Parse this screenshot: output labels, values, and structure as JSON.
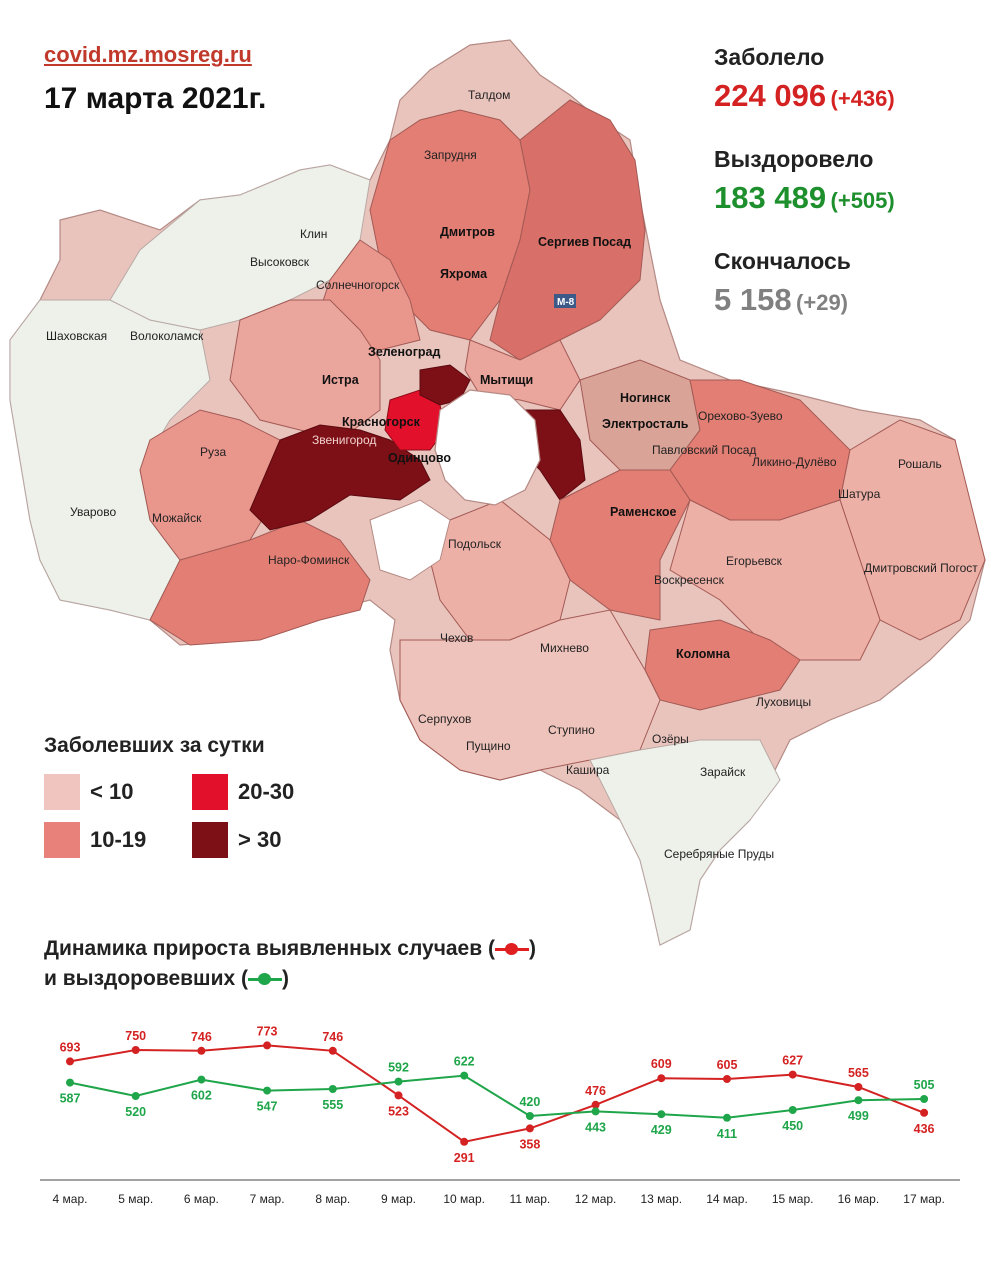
{
  "header": {
    "site": "covid.mz.mosreg.ru",
    "date": "17 марта 2021г."
  },
  "stats": {
    "infected": {
      "label": "Заболело",
      "value": "224 096",
      "delta": "(+436)",
      "color": "#d42222"
    },
    "recovered": {
      "label": "Выздоровело",
      "value": "183 489",
      "delta": "(+505)",
      "color": "#1d8f2c"
    },
    "died": {
      "label": "Скончалось",
      "value": "5 158",
      "delta": "(+29)",
      "color": "#808080"
    }
  },
  "legend": {
    "title": "Заболевших за сутки",
    "items": [
      {
        "label": "< 10",
        "color": "#f0c4bf"
      },
      {
        "label": "20-30",
        "color": "#e2102a"
      },
      {
        "label": "10-19",
        "color": "#e8817a"
      },
      {
        "label": "> 30",
        "color": "#7d0f16"
      }
    ]
  },
  "map_places": [
    "Талдом",
    "Запрудня",
    "Дмитров",
    "Яхрома",
    "Сергиев Посад",
    "Клин",
    "Высоковск",
    "Солнечногорск",
    "Шаховская",
    "Волоколамск",
    "Зеленоград",
    "Истра",
    "Мытищи",
    "Красногорск",
    "Звенигород",
    "Одинцово",
    "Руза",
    "Уварово",
    "Можайск",
    "Наро-Фоминск",
    "Ногинск",
    "Электросталь",
    "Павловский Посад",
    "Орехово-Зуево",
    "Ликино-Дулёво",
    "Рошаль",
    "Шатура",
    "Раменское",
    "Подольск",
    "Егорьевск",
    "Воскресенск",
    "Дмитровский Погост",
    "Чехов",
    "Михнево",
    "Коломна",
    "Луховицы",
    "Серпухов",
    "Пущино",
    "Ступино",
    "Озёры",
    "Кашира",
    "Зарайск",
    "Серебряные Пруды",
    "М-8"
  ],
  "dynamics": {
    "title_line1": "Динамика прироста выявленных случаев (",
    "title_line1_end": ")",
    "title_line2": "и выздоровевших (",
    "title_line2_end": ")"
  },
  "chart_data": {
    "type": "line",
    "categories": [
      "4 мар.",
      "5 мар.",
      "6 мар.",
      "7 мар.",
      "8 мар.",
      "9 мар.",
      "10 мар.",
      "11 мар.",
      "12 мар.",
      "13 мар.",
      "14 мар.",
      "15 мар.",
      "16 мар.",
      "17 мар."
    ],
    "series": [
      {
        "color": "#d42222",
        "values": [
          693,
          750,
          746,
          773,
          746,
          523,
          291,
          358,
          476,
          609,
          605,
          627,
          565,
          436
        ]
      },
      {
        "color": "#1fa54a",
        "values": [
          587,
          520,
          602,
          547,
          555,
          592,
          622,
          420,
          443,
          429,
          411,
          450,
          499,
          505
        ]
      }
    ],
    "ylim": [
      250,
      800
    ],
    "grid": false
  }
}
